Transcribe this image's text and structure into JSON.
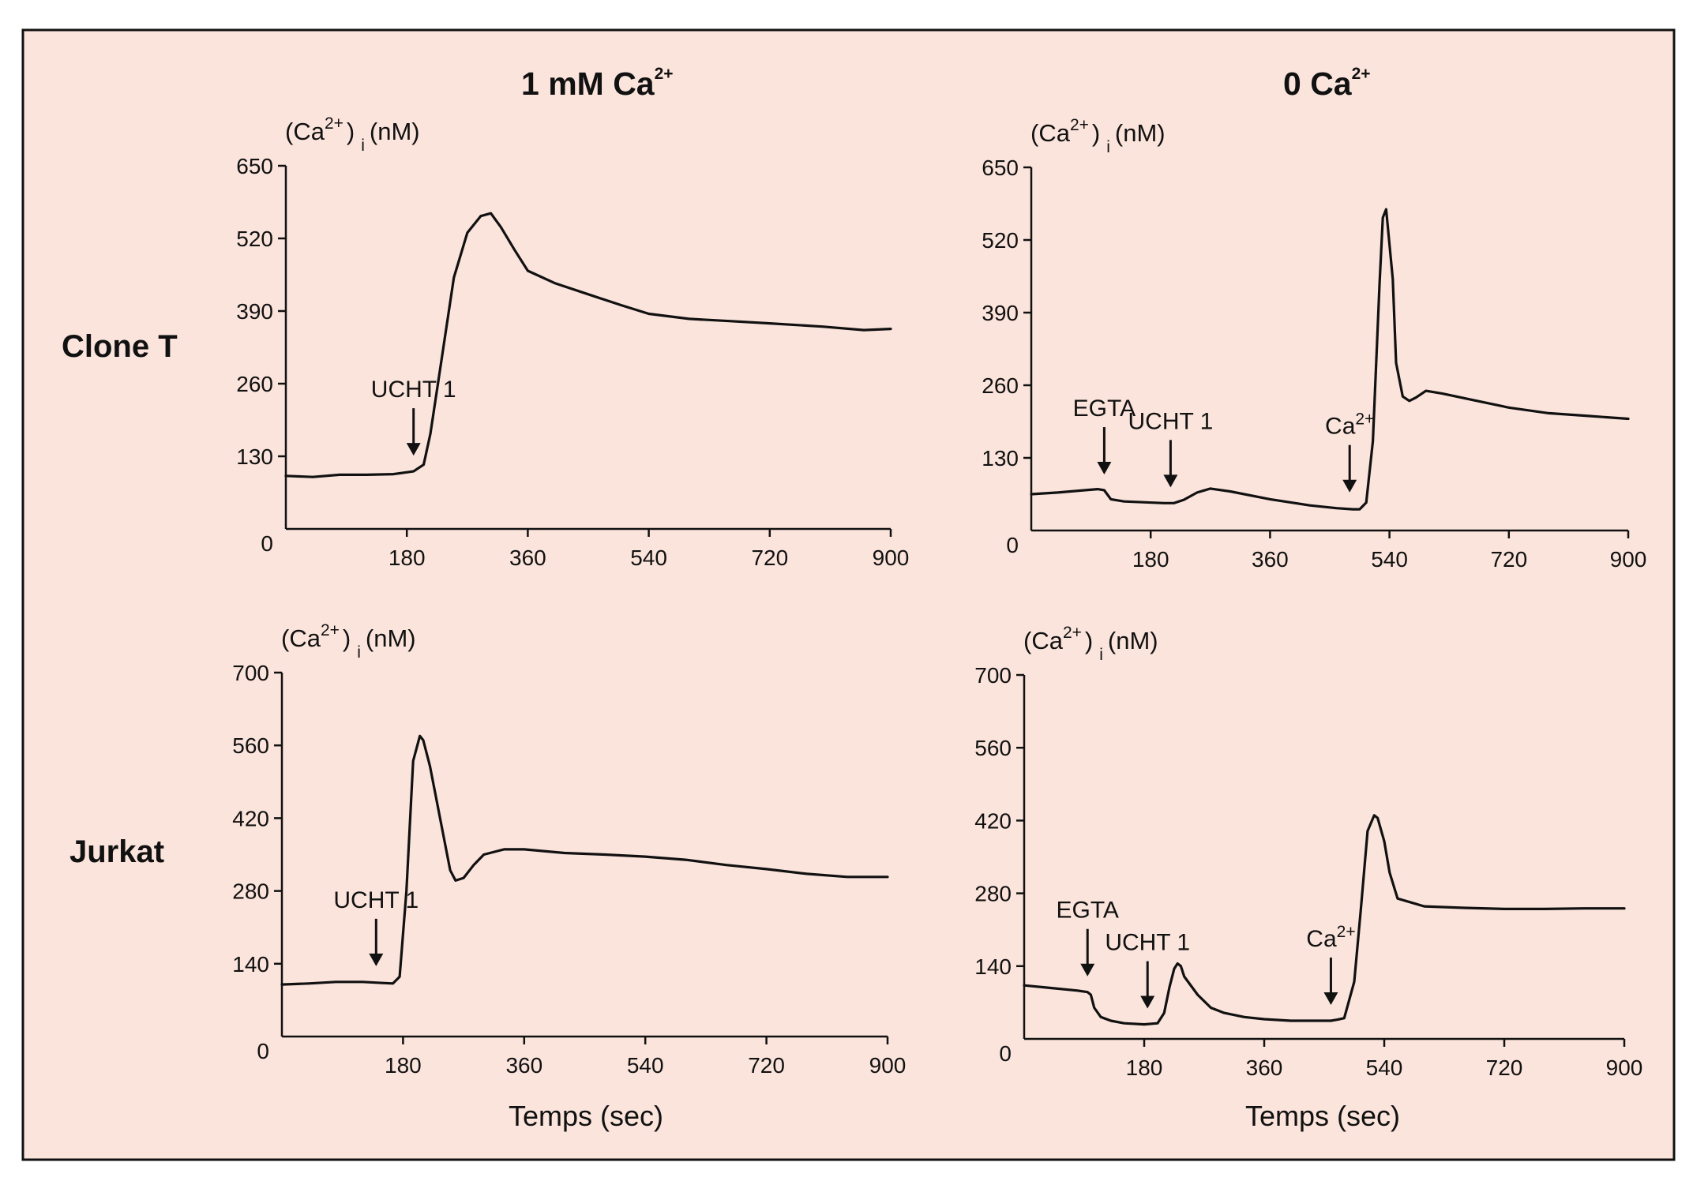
{
  "figure": {
    "background_color": "#fbe4dc",
    "frame_color": "#111111",
    "row_label_color": "#e00000",
    "line_color": "#111111",
    "col_titles": [
      {
        "main": "1 mM  Ca",
        "sup": "2+"
      },
      {
        "main": "0  Ca",
        "sup": "2+"
      }
    ],
    "row_labels": [
      "Clone T",
      "Jurkat"
    ],
    "ylabel": {
      "a": "(Ca",
      "sup": "2+",
      "b": ")",
      "sub": "i",
      "c": "(nM)"
    },
    "xlabel": "Temps (sec)"
  },
  "chart_data": [
    {
      "type": "line",
      "row": "Clone T",
      "column": "1 mM Ca2+",
      "xlim": [
        0,
        900
      ],
      "ylim": [
        0,
        650
      ],
      "x_ticks": [
        "0",
        "180",
        "360",
        "540",
        "720",
        "900"
      ],
      "y_ticks": [
        "130",
        "260",
        "390",
        "520",
        "650"
      ],
      "x": [
        0,
        40,
        80,
        120,
        160,
        190,
        205,
        215,
        230,
        250,
        270,
        290,
        305,
        320,
        340,
        360,
        400,
        450,
        500,
        540,
        600,
        660,
        720,
        800,
        860,
        900
      ],
      "y": [
        95,
        93,
        97,
        97,
        98,
        103,
        115,
        170,
        290,
        450,
        530,
        560,
        565,
        540,
        500,
        462,
        440,
        420,
        400,
        385,
        376,
        372,
        368,
        362,
        356,
        358
      ],
      "annotations": [
        {
          "label": "UCHT 1",
          "x": 190
        }
      ]
    },
    {
      "type": "line",
      "row": "Clone T",
      "column": "0 Ca2+",
      "xlim": [
        0,
        900
      ],
      "ylim": [
        0,
        650
      ],
      "x_ticks": [
        "0",
        "180",
        "360",
        "540",
        "720",
        "900"
      ],
      "y_ticks": [
        "130",
        "260",
        "390",
        "520",
        "650"
      ],
      "x": [
        0,
        40,
        80,
        100,
        110,
        120,
        140,
        200,
        215,
        230,
        250,
        270,
        300,
        360,
        420,
        460,
        485,
        495,
        505,
        515,
        525,
        530,
        535,
        545,
        550,
        560,
        570,
        580,
        595,
        620,
        660,
        720,
        780,
        840,
        900
      ],
      "y": [
        65,
        68,
        72,
        74,
        72,
        56,
        52,
        49,
        49,
        55,
        68,
        75,
        70,
        56,
        45,
        40,
        38,
        38,
        50,
        160,
        440,
        560,
        575,
        450,
        300,
        240,
        232,
        238,
        250,
        245,
        235,
        220,
        210,
        205,
        200
      ],
      "annotations": [
        {
          "label": "EGTA",
          "x": 110
        },
        {
          "label": "UCHT 1",
          "x": 210
        },
        {
          "label": "Ca",
          "sup": "2+",
          "x": 480
        }
      ]
    },
    {
      "type": "line",
      "row": "Jurkat",
      "column": "1 mM Ca2+",
      "xlim": [
        0,
        900
      ],
      "ylim": [
        0,
        700
      ],
      "x_ticks": [
        "0",
        "180",
        "360",
        "540",
        "720",
        "900"
      ],
      "y_ticks": [
        "140",
        "280",
        "420",
        "560",
        "700"
      ],
      "x": [
        0,
        40,
        80,
        120,
        150,
        165,
        175,
        185,
        195,
        205,
        210,
        220,
        235,
        250,
        258,
        270,
        285,
        300,
        330,
        360,
        420,
        480,
        540,
        600,
        660,
        720,
        780,
        840,
        900
      ],
      "y": [
        100,
        102,
        105,
        105,
        103,
        102,
        115,
        280,
        530,
        578,
        570,
        520,
        420,
        320,
        300,
        305,
        330,
        350,
        360,
        360,
        353,
        350,
        346,
        340,
        330,
        322,
        313,
        307,
        307
      ],
      "annotations": [
        {
          "label": "UCHT 1",
          "x": 140
        }
      ]
    },
    {
      "type": "line",
      "row": "Jurkat",
      "column": "0 Ca2+",
      "xlim": [
        0,
        900
      ],
      "ylim": [
        0,
        700
      ],
      "x_ticks": [
        "0",
        "180",
        "360",
        "540",
        "720",
        "900"
      ],
      "y_ticks": [
        "140",
        "280",
        "420",
        "560",
        "700"
      ],
      "x": [
        0,
        40,
        80,
        95,
        100,
        105,
        115,
        130,
        150,
        180,
        200,
        210,
        218,
        225,
        230,
        235,
        240,
        260,
        280,
        300,
        330,
        360,
        400,
        440,
        460,
        470,
        480,
        495,
        505,
        515,
        525,
        530,
        540,
        548,
        560,
        600,
        660,
        720,
        780,
        840,
        900
      ],
      "y": [
        103,
        98,
        93,
        90,
        85,
        60,
        42,
        35,
        30,
        28,
        30,
        50,
        100,
        135,
        145,
        140,
        120,
        85,
        60,
        50,
        42,
        38,
        35,
        35,
        35,
        37,
        40,
        110,
        250,
        400,
        430,
        425,
        380,
        320,
        270,
        255,
        252,
        250,
        250,
        251,
        251
      ],
      "annotations": [
        {
          "label": "EGTA",
          "x": 95
        },
        {
          "label": "UCHT 1",
          "x": 185
        },
        {
          "label": "Ca",
          "sup": "2+",
          "x": 460
        }
      ]
    }
  ]
}
